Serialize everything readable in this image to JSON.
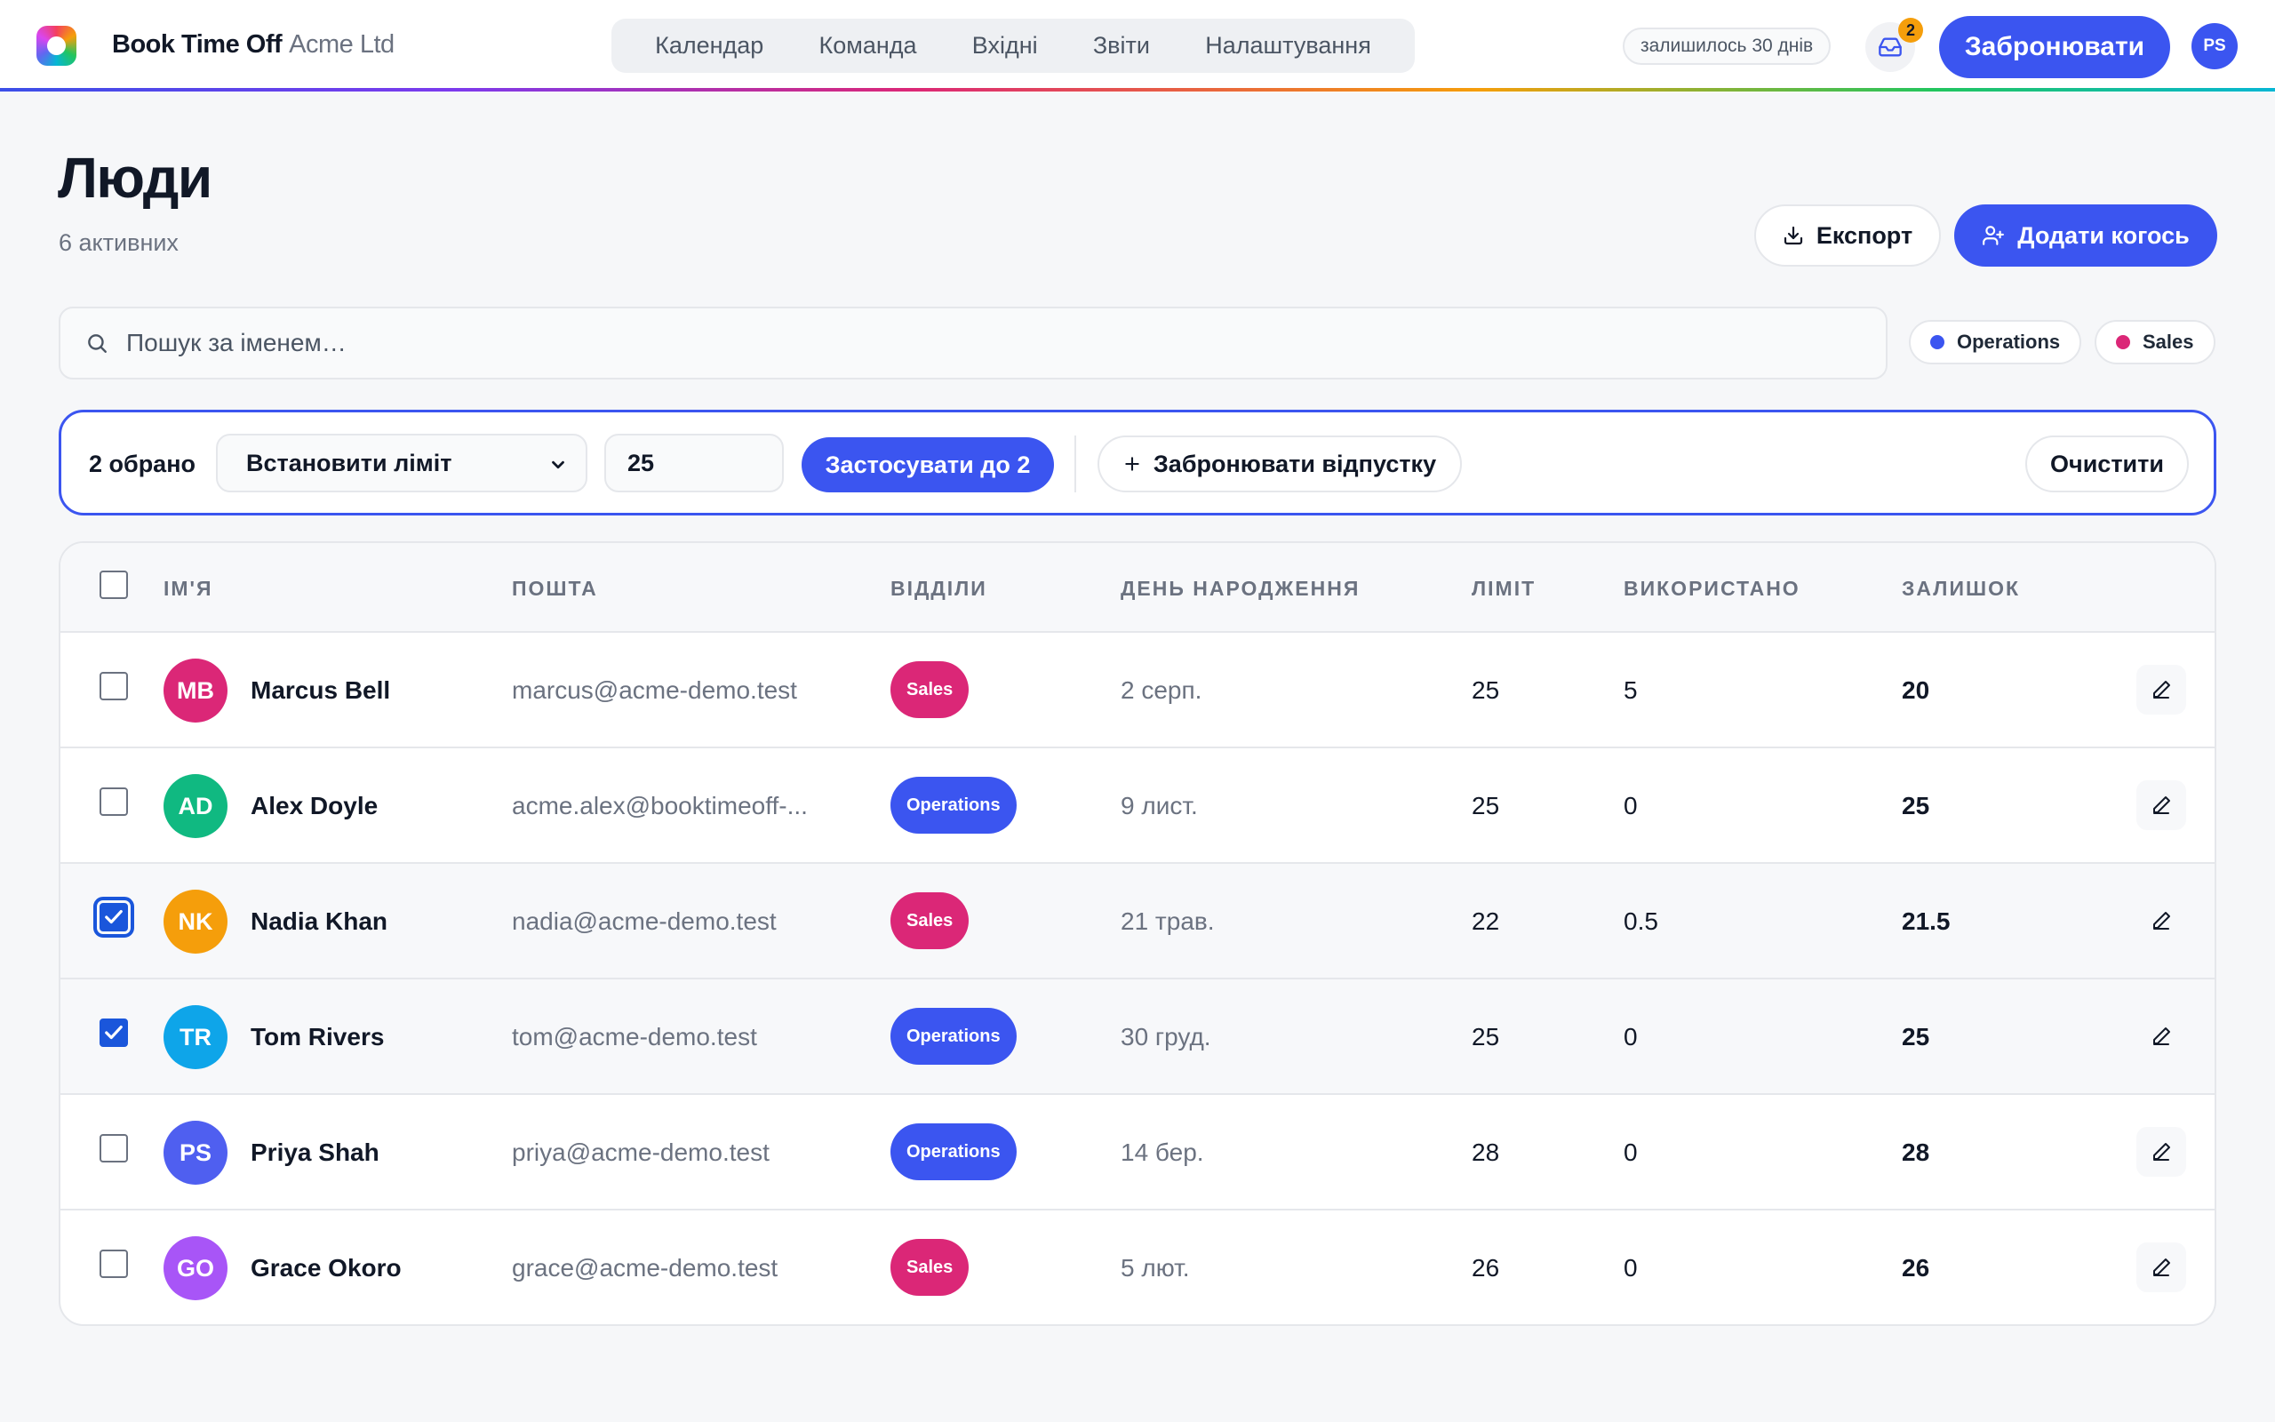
{
  "header": {
    "brand": "Book Time Off",
    "org": "Acme Ltd",
    "nav": [
      "Календар",
      "Команда",
      "Вхідні",
      "Звіти",
      "Налаштування"
    ],
    "days_left": "залишилось 30 днів",
    "inbox_count": "2",
    "book_label": "Забронювати",
    "user_initials": "PS"
  },
  "page": {
    "title": "Люди",
    "subtitle": "6 активних",
    "export_label": "Експорт",
    "add_label": "Додати когось"
  },
  "search": {
    "placeholder": "Пошук за іменем…"
  },
  "filters": [
    {
      "label": "Operations",
      "color": "#3b55f0"
    },
    {
      "label": "Sales",
      "color": "#db2777"
    }
  ],
  "bulk": {
    "count": "2 обрано",
    "action": "Встановити ліміт",
    "value": "25",
    "apply_label": "Застосувати до 2",
    "book_leave_label": "Забронювати відпустку",
    "clear_label": "Очистити"
  },
  "table": {
    "columns": {
      "name": "Ім'я",
      "email": "Пошта",
      "departments": "Відділи",
      "birthday": "День народження",
      "limit": "Ліміт",
      "used": "Використано",
      "balance": "Залишок"
    },
    "rows": [
      {
        "initials": "MB",
        "avatar_color": "#db2777",
        "name": "Marcus Bell",
        "email": "marcus@acme-demo.test",
        "dept": "Sales",
        "birthday": "2 серп.",
        "limit": "25",
        "used": "5",
        "balance": "20",
        "checked": false
      },
      {
        "initials": "AD",
        "avatar_color": "#10b981",
        "name": "Alex Doyle",
        "email": "acme.alex@booktimeoff-...",
        "dept": "Operations",
        "birthday": "9 лист.",
        "limit": "25",
        "used": "0",
        "balance": "25",
        "checked": false
      },
      {
        "initials": "NK",
        "avatar_color": "#f59e0b",
        "name": "Nadia Khan",
        "email": "nadia@acme-demo.test",
        "dept": "Sales",
        "birthday": "21 трав.",
        "limit": "22",
        "used": "0.5",
        "balance": "21.5",
        "checked": true
      },
      {
        "initials": "TR",
        "avatar_color": "#0ea5e9",
        "name": "Tom Rivers",
        "email": "tom@acme-demo.test",
        "dept": "Operations",
        "birthday": "30 груд.",
        "limit": "25",
        "used": "0",
        "balance": "25",
        "checked": true
      },
      {
        "initials": "PS",
        "avatar_color": "#4f5ff0",
        "name": "Priya Shah",
        "email": "priya@acme-demo.test",
        "dept": "Operations",
        "birthday": "14 бер.",
        "limit": "28",
        "used": "0",
        "balance": "28",
        "checked": false
      },
      {
        "initials": "GO",
        "avatar_color": "#a855f7",
        "name": "Grace Okoro",
        "email": "grace@acme-demo.test",
        "dept": "Sales",
        "birthday": "5 лют.",
        "limit": "26",
        "used": "0",
        "balance": "26",
        "checked": false
      }
    ]
  },
  "colors": {
    "accent": "#3b55f0",
    "sales": "#db2777",
    "operations": "#3b55f0"
  }
}
